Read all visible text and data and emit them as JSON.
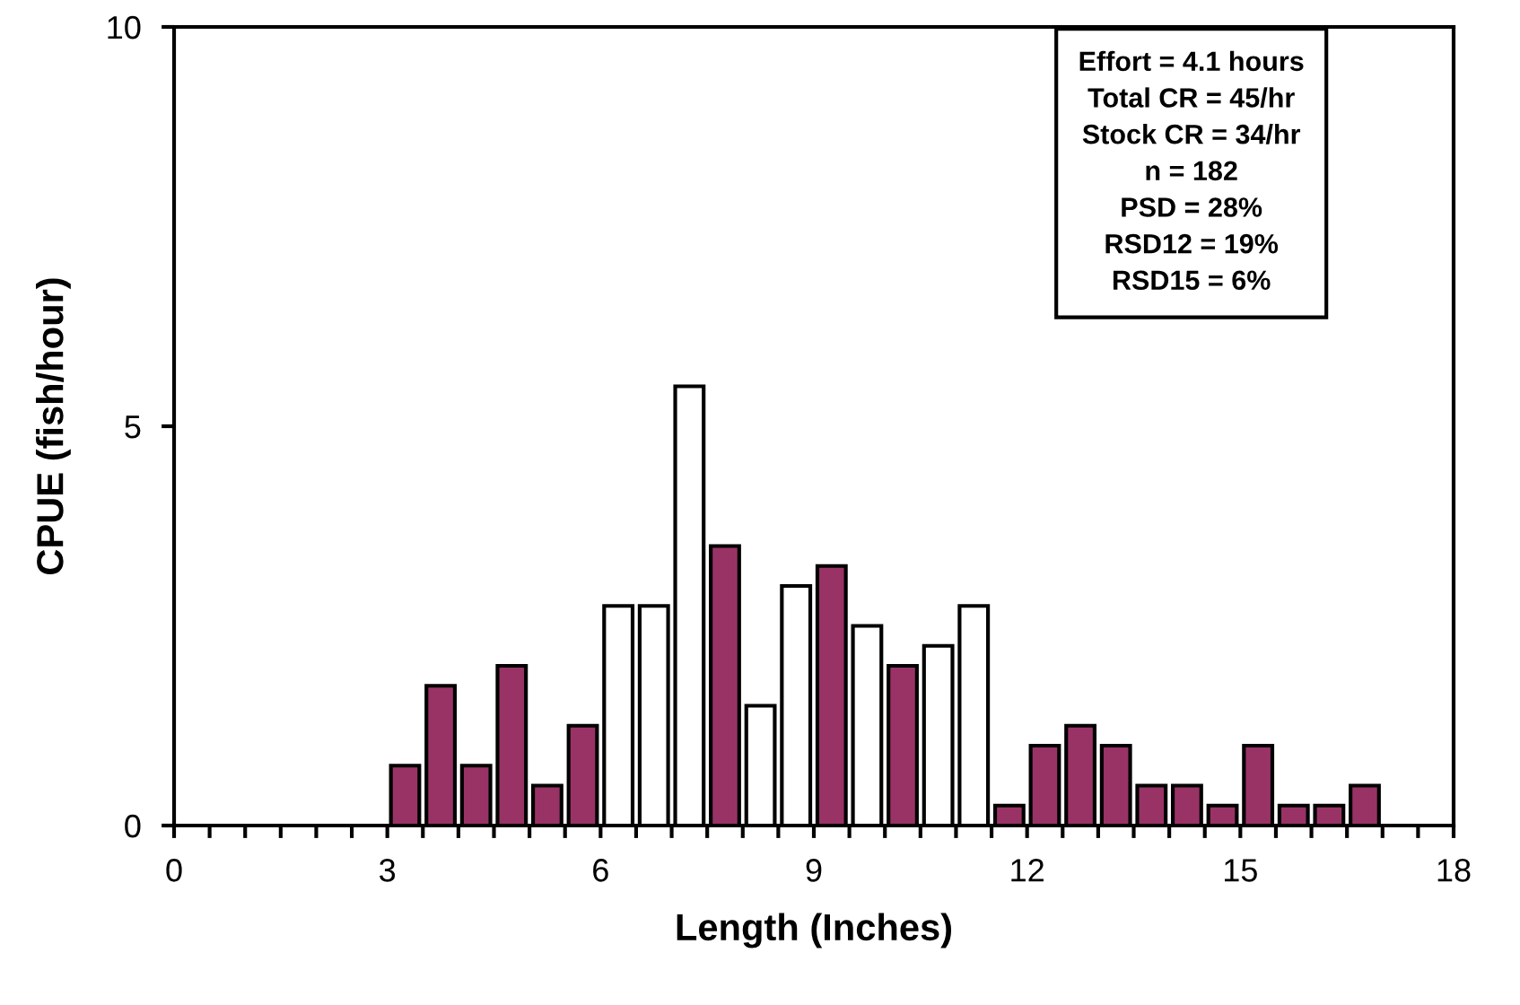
{
  "chart_data": {
    "type": "bar",
    "xlabel": "Length (Inches)",
    "ylabel": "CPUE (fish/hour)",
    "x": [
      3.25,
      3.75,
      4.25,
      4.75,
      5.25,
      5.75,
      6.25,
      6.75,
      7.25,
      7.75,
      8.25,
      8.75,
      9.25,
      9.75,
      10.25,
      10.75,
      11.25,
      11.75,
      12.25,
      12.75,
      13.25,
      13.75,
      14.25,
      14.75,
      15.25,
      15.75,
      16.25,
      16.75
    ],
    "values": [
      0.75,
      1.75,
      0.75,
      2.0,
      0.5,
      1.25,
      2.75,
      2.75,
      5.5,
      3.5,
      1.5,
      3.0,
      3.25,
      2.5,
      2.0,
      2.25,
      2.75,
      0.25,
      1.0,
      1.25,
      1.0,
      0.5,
      0.5,
      0.25,
      1.0,
      0.25,
      0.25,
      0.5
    ],
    "colors": [
      "#993366",
      "#993366",
      "#993366",
      "#993366",
      "#993366",
      "#993366",
      "#ffffff",
      "#ffffff",
      "#ffffff",
      "#993366",
      "#ffffff",
      "#ffffff",
      "#993366",
      "#ffffff",
      "#993366",
      "#ffffff",
      "#ffffff",
      "#993366",
      "#993366",
      "#993366",
      "#993366",
      "#993366",
      "#993366",
      "#993366",
      "#993366",
      "#993366",
      "#993366",
      "#993366"
    ],
    "xlim": [
      0,
      18
    ],
    "xticks": [
      0,
      {
        "value": 0.5,
        "label": null
      },
      {
        "value": 1,
        "label": null
      },
      {
        "value": 1.5,
        "label": null
      },
      {
        "value": 2,
        "label": null
      },
      {
        "value": 2.5,
        "label": null
      },
      3,
      {
        "value": 3.5,
        "label": null
      },
      {
        "value": 4,
        "label": null
      },
      {
        "value": 4.5,
        "label": null
      },
      {
        "value": 5,
        "label": null
      },
      {
        "value": 5.5,
        "label": null
      },
      6,
      {
        "value": 6.5,
        "label": null
      },
      {
        "value": 7,
        "label": null
      },
      {
        "value": 7.5,
        "label": null
      },
      {
        "value": 8,
        "label": null
      },
      {
        "value": 8.5,
        "label": null
      },
      9,
      {
        "value": 9.5,
        "label": null
      },
      {
        "value": 10,
        "label": null
      },
      {
        "value": 10.5,
        "label": null
      },
      {
        "value": 11,
        "label": null
      },
      {
        "value": 11.5,
        "label": null
      },
      12,
      {
        "value": 12.5,
        "label": null
      },
      {
        "value": 13,
        "label": null
      },
      {
        "value": 13.5,
        "label": null
      },
      {
        "value": 14,
        "label": null
      },
      {
        "value": 14.5,
        "label": null
      },
      15,
      {
        "value": 15.5,
        "label": null
      },
      {
        "value": 16,
        "label": null
      },
      {
        "value": 16.5,
        "label": null
      },
      {
        "value": 17,
        "label": null
      },
      {
        "value": 17.5,
        "label": null
      },
      18
    ],
    "ylim": [
      0,
      10
    ],
    "yticks": [
      0,
      5,
      10
    ],
    "grid": false,
    "annotations": [
      "Effort = 4.1 hours",
      "Total CR = 45/hr",
      "Stock CR = 34/hr",
      "n = 182",
      "PSD = 28%",
      "RSD12 = 19%",
      "RSD15 = 6%"
    ]
  }
}
